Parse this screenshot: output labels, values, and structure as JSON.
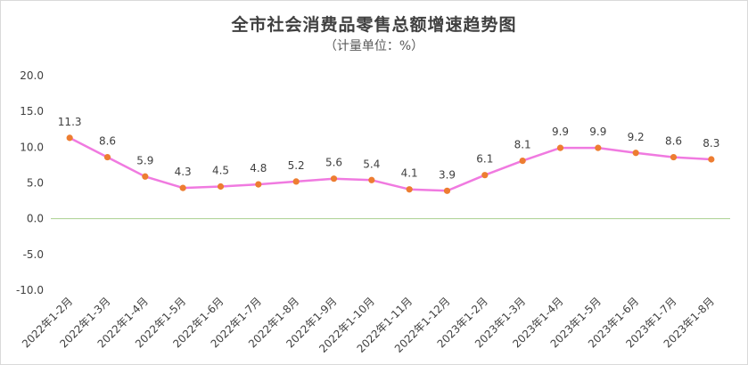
{
  "chart_data": {
    "type": "line",
    "title": "全市社会消费品零售总额增速趋势图",
    "subtitle": "（计量单位：%）",
    "categories": [
      "2022年1-2月",
      "2022年1-3月",
      "2022年1-4月",
      "2022年1-5月",
      "2022年1-6月",
      "2022年1-7月",
      "2022年1-8月",
      "2022年1-9月",
      "2022年1-10月",
      "2022年1-11月",
      "2022年1-12月",
      "2023年1-2月",
      "2023年1-3月",
      "2023年1-4月",
      "2023年1-5月",
      "2023年1-6月",
      "2023年1-7月",
      "2023年1-8月"
    ],
    "values": [
      11.3,
      8.6,
      5.9,
      4.3,
      4.5,
      4.8,
      5.2,
      5.6,
      5.4,
      4.1,
      3.9,
      6.1,
      8.1,
      9.9,
      9.9,
      9.2,
      8.6,
      8.3
    ],
    "value_labels": [
      "11.3",
      "8.6",
      "5.9",
      "4.3",
      "4.5",
      "4.8",
      "5.2",
      "5.6",
      "5.4",
      "4.1",
      "3.9",
      "6.1",
      "8.1",
      "9.9",
      "9.9",
      "9.2",
      "8.6",
      "8.3"
    ],
    "y_ticks": [
      "20.0",
      "15.0",
      "10.0",
      "5.0",
      "0.0",
      "-5.0",
      "-10.0"
    ],
    "y_tick_values": [
      20,
      15,
      10,
      5,
      0,
      -5,
      -10
    ],
    "ylim": [
      -10,
      20
    ],
    "xlabel": "",
    "ylabel": "",
    "grid": false,
    "line_color": "#f07ae0",
    "marker_color": "#ed7d31",
    "zero_line_color": "#a9d18e"
  }
}
